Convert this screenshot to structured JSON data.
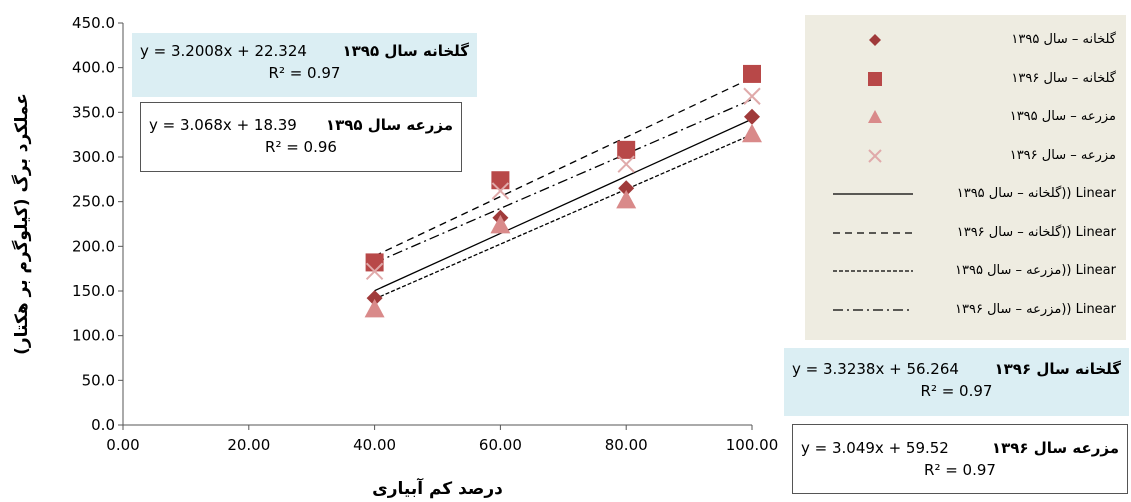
{
  "chart_data": {
    "type": "scatter",
    "xlabel": "درصد کم آبیاری",
    "ylabel": "عملکرد برگ (کیلوگرم بر هکتار)",
    "xlim": [
      0,
      100
    ],
    "ylim": [
      0,
      450
    ],
    "x_ticks": [
      "0.00",
      "20.00",
      "40.00",
      "60.00",
      "80.00",
      "100.00"
    ],
    "y_ticks": [
      "0.0",
      "50.0",
      "100.0",
      "150.0",
      "200.0",
      "250.0",
      "300.0",
      "350.0",
      "400.0",
      "450.0"
    ],
    "grid": false,
    "legend_position": "right",
    "series": [
      {
        "name": "گلخانه – سال ۱۳۹۵",
        "marker": "diamond",
        "color": "#a03a3a",
        "x": [
          40,
          60,
          80,
          100
        ],
        "y": [
          142,
          232,
          265,
          345
        ]
      },
      {
        "name": "گلخانه – سال ۱۳۹۶",
        "marker": "square",
        "color": "#b84848",
        "x": [
          40,
          60,
          80,
          100
        ],
        "y": [
          182,
          274,
          308,
          393
        ]
      },
      {
        "name": "مزرعه – سال ۱۳۹۵",
        "marker": "triangle",
        "color": "#d98a8a",
        "x": [
          40,
          60,
          80,
          100
        ],
        "y": [
          130,
          224,
          252,
          326
        ]
      },
      {
        "name": "مزرعه – سال ۱۳۹۶",
        "marker": "cross",
        "color": "#e0aaaa",
        "x": [
          40,
          60,
          80,
          100
        ],
        "y": [
          172,
          262,
          292,
          368
        ]
      }
    ],
    "trendlines": [
      {
        "name": "گلخانه – سال ۱۳۹۵",
        "legend": "Linear (گلخانه – سال ۱۳۹۵)",
        "slope": 3.2008,
        "intercept": 22.324,
        "dash": "solid",
        "label": "گلخانه سال ۱۳۹۵",
        "equation": "y = 3.2008x + 22.324",
        "r2": "R² = 0.97"
      },
      {
        "name": "گلخانه – سال ۱۳۹۶",
        "legend": "Linear (گلخانه – سال ۱۳۹۶)",
        "slope": 3.3238,
        "intercept": 56.264,
        "dash": "dash",
        "label": "گلخانه سال ۱۳۹۶",
        "equation": "y = 3.3238x + 56.264",
        "r2": "R² = 0.97"
      },
      {
        "name": "مزرعه – سال ۱۳۹۵",
        "legend": "Linear (مزرعه – سال ۱۳۹۵)",
        "slope": 3.068,
        "intercept": 18.39,
        "dash": "dot",
        "label": "مزرعه سال ۱۳۹۵",
        "equation": "y = 3.068x + 18.39",
        "r2": "R² = 0.96"
      },
      {
        "name": "مزرعه – سال ۱۳۹۶",
        "legend": "Linear (مزرعه – سال ۱۳۹۶)",
        "slope": 3.049,
        "intercept": 59.52,
        "dash": "dashdot",
        "label": "مزرعه سال ۱۳۹۶",
        "equation": "y = 3.049x + 59.52",
        "r2": "R² = 0.97"
      }
    ]
  },
  "legend": {
    "items": [
      {
        "text": "گلخانه – سال ۱۳۹۵",
        "kind": "marker",
        "series": 0
      },
      {
        "text": "گلخانه – سال ۱۳۹۶",
        "kind": "marker",
        "series": 1
      },
      {
        "text": "مزرعه – سال ۱۳۹۵",
        "kind": "marker",
        "series": 2
      },
      {
        "text": "مزرعه – سال ۱۳۹۶",
        "kind": "marker",
        "series": 3
      },
      {
        "text": "گلخانه – سال ۱۳۹۵)) Linear",
        "kind": "line",
        "trend": 0
      },
      {
        "text": "گلخانه – سال ۱۳۹۶)) Linear",
        "kind": "line",
        "trend": 1
      },
      {
        "text": "مزرعه – سال ۱۳۹۵)) Linear",
        "kind": "line",
        "trend": 2
      },
      {
        "text": "مزرعه – سال ۱۳۹۶)) Linear",
        "kind": "line",
        "trend": 3
      }
    ]
  },
  "colors": {
    "legend_bg": "#eeece1",
    "eq_box_fill": "#dbeef3",
    "axis": "#555555"
  }
}
